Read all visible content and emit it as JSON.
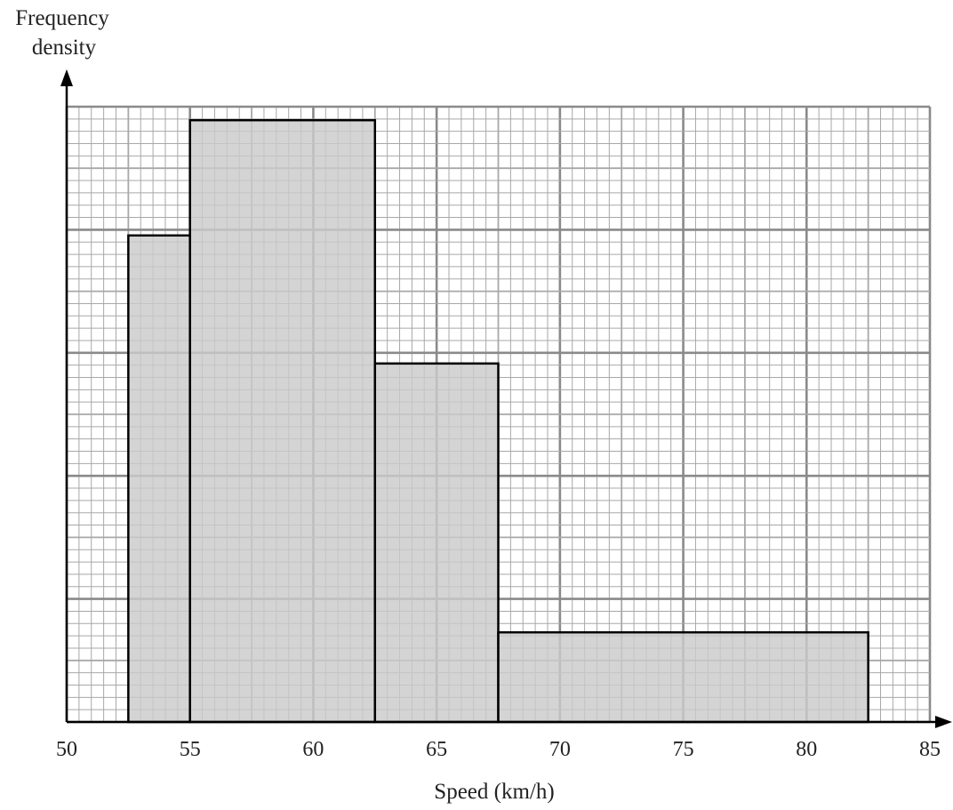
{
  "chart_data": {
    "type": "bar",
    "title": "",
    "ylabel_line1": "Frequency",
    "ylabel_line2": "density",
    "xlabel": "Speed (km/h)",
    "xlim": [
      50,
      85
    ],
    "ylim": [
      0,
      10
    ],
    "x_ticks": [
      "50",
      "55",
      "60",
      "65",
      "70",
      "75",
      "80",
      "85"
    ],
    "y_ticks": [],
    "grid": true,
    "bins": [
      {
        "start": 52.5,
        "end": 55,
        "density": 7.6
      },
      {
        "start": 55,
        "end": 62.5,
        "density": 9.4
      },
      {
        "start": 62.5,
        "end": 67.5,
        "density": 5.6
      },
      {
        "start": 67.5,
        "end": 82.5,
        "density": 1.4
      }
    ],
    "colors": {
      "bar_fill": "#cbcbcb",
      "bar_stroke": "#000000",
      "grid_minor": "#a8a8a8",
      "grid_major": "#8a8a8a",
      "grid_background": "#ffffff"
    }
  }
}
